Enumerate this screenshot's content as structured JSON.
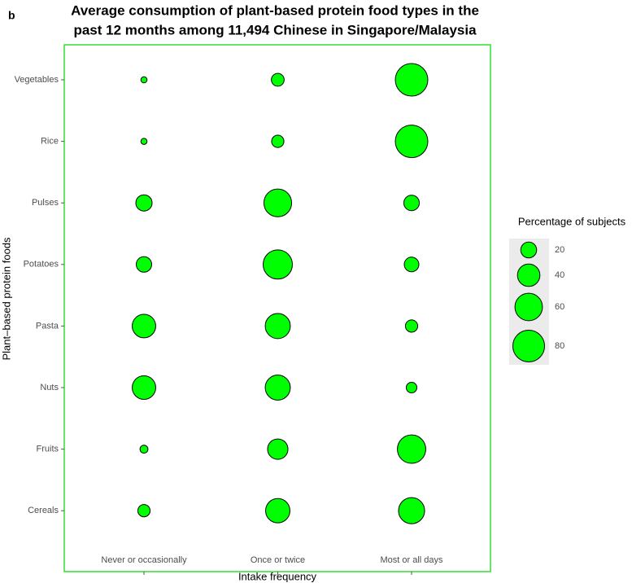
{
  "chart_data": {
    "type": "bubble",
    "panel_label": "b",
    "title": [
      "Average consumption of plant-based protein food types in the",
      "past 12 months among 11,494 Chinese in Singapore/Malaysia"
    ],
    "x_label": "Intake frequency",
    "y_label": "Plant–based protein foods",
    "x_categories": [
      "Never or occasionally",
      "Once or twice",
      "Most or all days"
    ],
    "y_categories": [
      "Vegetables",
      "Rice",
      "Pulses",
      "Potatoes",
      "Pasta",
      "Nuts",
      "Fruits",
      "Cereals"
    ],
    "values": [
      [
        3,
        13,
        84
      ],
      [
        3,
        12,
        84
      ],
      [
        21,
        61,
        19
      ],
      [
        19,
        68,
        17
      ],
      [
        44,
        50,
        12
      ],
      [
        44,
        50,
        9
      ],
      [
        5,
        33,
        64
      ],
      [
        12,
        47,
        54
      ]
    ],
    "color": "#00ff00",
    "legend_title": "Percentage of subjects",
    "legend_sizes": [
      20,
      40,
      60,
      80
    ]
  }
}
